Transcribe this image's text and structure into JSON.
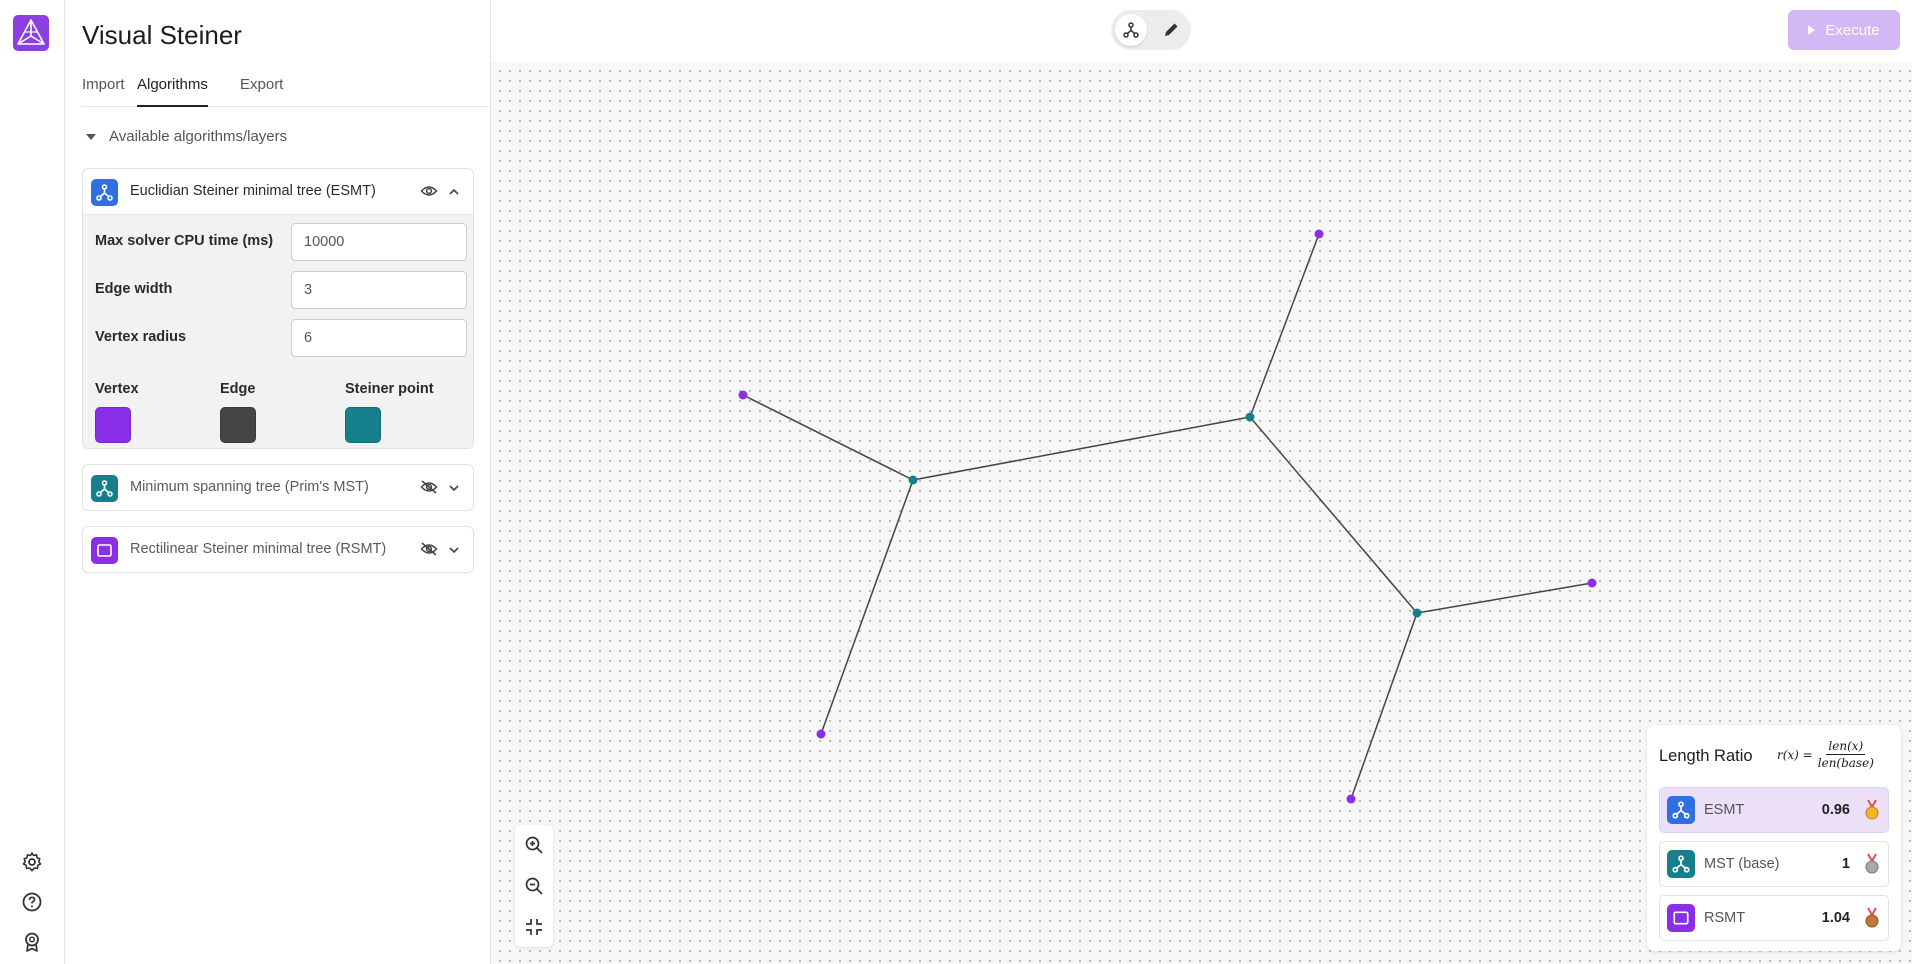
{
  "app": {
    "title": "Visual Steiner",
    "logo_icon": "steiner-logo-icon"
  },
  "rail": {
    "icons": [
      "settings-icon",
      "help-icon",
      "badge-icon"
    ]
  },
  "tabs": [
    {
      "label": "Import",
      "active": false
    },
    {
      "label": "Algorithms",
      "active": true
    },
    {
      "label": "Export",
      "active": false
    }
  ],
  "layers": {
    "section_label": "Available algorithms/layers",
    "esmt": {
      "title": "Euclidian Steiner minimal tree (ESMT)",
      "visible": true,
      "expanded": true,
      "icon_color": "#2f6fe0",
      "fields": {
        "cpu_label": "Max solver CPU time (ms)",
        "cpu_value": "10000",
        "edge_width_label": "Edge width",
        "edge_width_value": "3",
        "vertex_radius_label": "Vertex radius",
        "vertex_radius_value": "6"
      },
      "colors": {
        "vertex_label": "Vertex",
        "vertex_color": "#8b2ee8",
        "edge_label": "Edge",
        "edge_color": "#454545",
        "steiner_label": "Steiner point",
        "steiner_color": "#15808c"
      }
    },
    "mst": {
      "title": "Minimum spanning tree (Prim's MST)",
      "visible": false,
      "expanded": false,
      "icon_color": "#15808c"
    },
    "rsmt": {
      "title": "Rectilinear Steiner minimal tree (RSMT)",
      "visible": false,
      "expanded": false,
      "icon_color": "#8b2ee8"
    }
  },
  "toolbar": {
    "execute_label": "Execute",
    "mode": "graph"
  },
  "ratio": {
    "title": "Length Ratio",
    "formula": {
      "lhs": "r(x) =",
      "num": "len(x)",
      "den": "len(base)"
    },
    "rows": [
      {
        "name": "ESMT",
        "value": "0.96",
        "medal": "gold-medal-icon",
        "icon_color": "#2f6fe0"
      },
      {
        "name": "MST (base)",
        "value": "1",
        "medal": "silver-medal-icon",
        "icon_color": "#15808c"
      },
      {
        "name": "RSMT",
        "value": "1.04",
        "medal": "bronze-medal-icon",
        "icon_color": "#8b2ee8"
      }
    ]
  }
}
